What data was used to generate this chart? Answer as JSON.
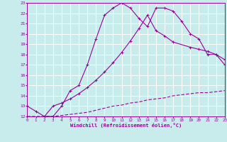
{
  "xlabel": "Windchill (Refroidissement éolien,°C)",
  "bg_color": "#c8ecec",
  "grid_color": "#ffffff",
  "line_color": "#990099",
  "ylim": [
    12,
    23
  ],
  "xlim": [
    0,
    23
  ],
  "yticks": [
    12,
    13,
    14,
    15,
    16,
    17,
    18,
    19,
    20,
    21,
    22,
    23
  ],
  "xticks": [
    0,
    1,
    2,
    3,
    4,
    5,
    6,
    7,
    8,
    9,
    10,
    11,
    12,
    13,
    14,
    15,
    16,
    17,
    18,
    19,
    20,
    21,
    22,
    23
  ],
  "line1_x": [
    0,
    1,
    2,
    3,
    4,
    5,
    6,
    7,
    8,
    9,
    10,
    11,
    12,
    13,
    14,
    15,
    16,
    17,
    18,
    19,
    20,
    21,
    22,
    23
  ],
  "line1_y": [
    13.0,
    12.5,
    12.0,
    12.0,
    13.0,
    14.5,
    15.0,
    17.0,
    19.5,
    21.8,
    22.5,
    23.0,
    22.5,
    21.5,
    20.7,
    22.5,
    22.5,
    22.2,
    21.2,
    20.0,
    19.5,
    18.0,
    18.0,
    17.0
  ],
  "line2_x": [
    2,
    3,
    4,
    5,
    6,
    7,
    8,
    9,
    10,
    11,
    12,
    13,
    14,
    15,
    16,
    17,
    19,
    20,
    21,
    22,
    23
  ],
  "line2_y": [
    12.0,
    13.0,
    13.3,
    13.7,
    14.2,
    14.8,
    15.5,
    16.3,
    17.2,
    18.2,
    19.3,
    20.5,
    21.8,
    20.3,
    19.8,
    19.2,
    18.7,
    18.5,
    18.3,
    18.0,
    17.5
  ],
  "line3_x": [
    0,
    1,
    2,
    3,
    4,
    5,
    6,
    7,
    8,
    9,
    10,
    11,
    12,
    13,
    14,
    15,
    16,
    17,
    18,
    19,
    20,
    21,
    22,
    23
  ],
  "line3_y": [
    12.0,
    12.0,
    12.0,
    12.0,
    12.1,
    12.2,
    12.3,
    12.4,
    12.6,
    12.8,
    13.0,
    13.1,
    13.3,
    13.4,
    13.6,
    13.7,
    13.8,
    14.0,
    14.1,
    14.2,
    14.3,
    14.3,
    14.4,
    14.5
  ]
}
